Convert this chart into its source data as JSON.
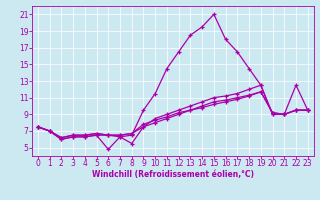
{
  "xlabel": "Windchill (Refroidissement éolien,°C)",
  "background_color": "#cce8f0",
  "line_color": "#aa00aa",
  "xlim": [
    -0.5,
    23.5
  ],
  "ylim": [
    4.0,
    22.0
  ],
  "xticks": [
    0,
    1,
    2,
    3,
    4,
    5,
    6,
    7,
    8,
    9,
    10,
    11,
    12,
    13,
    14,
    15,
    16,
    17,
    18,
    19,
    20,
    21,
    22,
    23
  ],
  "yticks": [
    5,
    7,
    9,
    11,
    13,
    15,
    17,
    19,
    21
  ],
  "series": {
    "line1_x": [
      0,
      1,
      2,
      3,
      4,
      5,
      6,
      7,
      8,
      9,
      10,
      11,
      12,
      13,
      14,
      15,
      16,
      17,
      18,
      19,
      20,
      21,
      22,
      23
    ],
    "line1_y": [
      7.5,
      7.0,
      6.0,
      6.3,
      6.3,
      6.5,
      6.5,
      6.3,
      6.5,
      9.5,
      11.5,
      14.5,
      16.5,
      18.5,
      19.5,
      21.0,
      18.0,
      16.5,
      14.5,
      12.5,
      9.0,
      9.0,
      12.5,
      9.5
    ],
    "line2_x": [
      0,
      1,
      2,
      3,
      4,
      5,
      6,
      7,
      8,
      9,
      10,
      11,
      12,
      13,
      14,
      15,
      16,
      17,
      18,
      19,
      20,
      21,
      22,
      23
    ],
    "line2_y": [
      7.5,
      7.0,
      6.0,
      6.3,
      6.3,
      6.5,
      4.8,
      6.3,
      5.5,
      7.5,
      8.5,
      9.0,
      9.5,
      10.0,
      10.5,
      11.0,
      11.2,
      11.5,
      12.0,
      12.5,
      9.0,
      9.0,
      9.5,
      9.5
    ],
    "line3_x": [
      0,
      1,
      2,
      3,
      4,
      5,
      6,
      7,
      8,
      9,
      10,
      11,
      12,
      13,
      14,
      15,
      16,
      17,
      18,
      19,
      20,
      21,
      22,
      23
    ],
    "line3_y": [
      7.5,
      7.0,
      6.2,
      6.5,
      6.5,
      6.7,
      6.5,
      6.5,
      6.7,
      7.5,
      8.0,
      8.5,
      9.0,
      9.5,
      10.0,
      10.5,
      10.7,
      11.0,
      11.3,
      11.7,
      9.2,
      9.0,
      9.5,
      9.5
    ],
    "line4_x": [
      0,
      1,
      2,
      3,
      4,
      5,
      6,
      7,
      8,
      9,
      10,
      11,
      12,
      13,
      14,
      15,
      16,
      17,
      18,
      19,
      20,
      21,
      22,
      23
    ],
    "line4_y": [
      7.5,
      7.0,
      6.2,
      6.5,
      6.5,
      6.7,
      6.5,
      6.5,
      6.7,
      7.8,
      8.3,
      8.7,
      9.2,
      9.5,
      9.8,
      10.2,
      10.5,
      10.8,
      11.2,
      11.7,
      9.2,
      9.0,
      9.5,
      9.5
    ]
  },
  "tick_fontsize": 5.5,
  "xlabel_fontsize": 5.5,
  "grid_color": "#ffffff",
  "spine_color": "#aa00aa"
}
